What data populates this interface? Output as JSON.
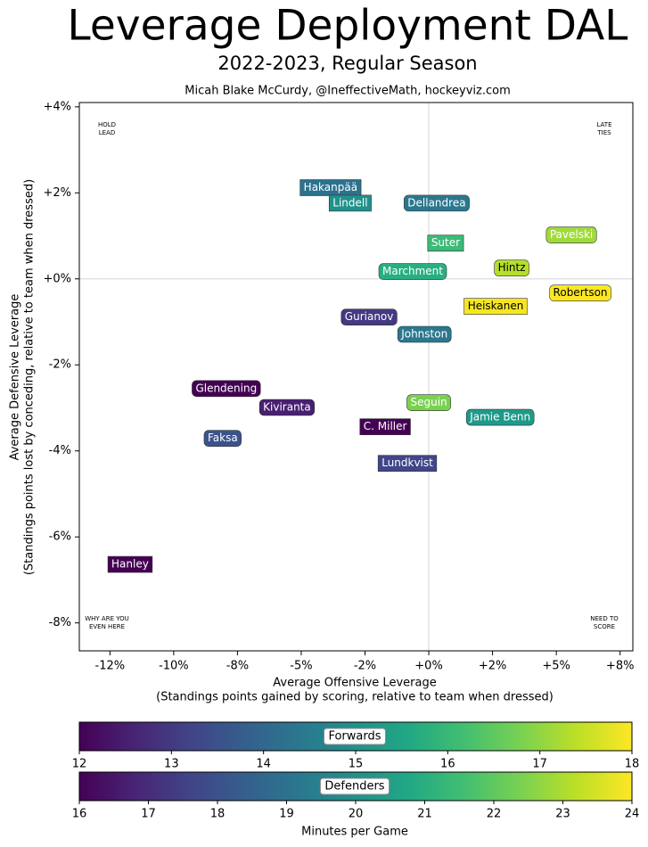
{
  "chart_data": {
    "type": "scatter",
    "title": "Leverage Deployment DAL",
    "subtitle": "2022-2023, Regular Season",
    "byline": "Micah Blake McCurdy, @IneffectiveMath, hockeyviz.com",
    "x_label": [
      "Average Offensive Leverage",
      "(Standings points gained by scoring, relative to team when dressed)"
    ],
    "y_label": [
      "Average Defensive Leverage",
      "(Standings points lost by conceding, relative to team when dressed)"
    ],
    "xlim": [
      -13.7,
      8.0
    ],
    "ylim": [
      -8.65,
      4.1
    ],
    "xticks": [
      {
        "value": -12.5,
        "label": "-12%"
      },
      {
        "value": -10,
        "label": "-10%"
      },
      {
        "value": -7.5,
        "label": "-8%"
      },
      {
        "value": -5,
        "label": "-5%"
      },
      {
        "value": -2.5,
        "label": "-2%"
      },
      {
        "value": 0,
        "label": "+0%"
      },
      {
        "value": 2.5,
        "label": "+2%"
      },
      {
        "value": 5,
        "label": "+5%"
      },
      {
        "value": 7.5,
        "label": "+8%"
      }
    ],
    "yticks": [
      {
        "value": 4,
        "label": "+4%"
      },
      {
        "value": 2,
        "label": "+2%"
      },
      {
        "value": 0,
        "label": "+0%"
      },
      {
        "value": -2,
        "label": "-2%"
      },
      {
        "value": -4,
        "label": "-4%"
      },
      {
        "value": -6,
        "label": "-6%"
      },
      {
        "value": -8,
        "label": "-8%"
      }
    ],
    "reference_lines": {
      "x": 0,
      "y": 0
    },
    "points": [
      {
        "label": "Hakanpää",
        "x": -3.85,
        "y": 2.12,
        "color": "#2c728e",
        "shape": "square"
      },
      {
        "label": "Lindell",
        "x": -3.08,
        "y": 1.76,
        "color": "#21918c",
        "shape": "square"
      },
      {
        "label": "Dellandrea",
        "x": 0.31,
        "y": 1.76,
        "color": "#2a788e",
        "shape": "round"
      },
      {
        "label": "Suter",
        "x": 0.66,
        "y": 0.83,
        "color": "#3bbb75",
        "shape": "square"
      },
      {
        "label": "Pavelski",
        "x": 5.59,
        "y": 1.02,
        "color": "#a0da39",
        "shape": "round"
      },
      {
        "label": "Hintz",
        "x": 3.25,
        "y": 0.25,
        "color": "#b5de2b",
        "shape": "round"
      },
      {
        "label": "Marchment",
        "x": -0.63,
        "y": 0.17,
        "color": "#29af7f",
        "shape": "round"
      },
      {
        "label": "Robertson",
        "x": 5.94,
        "y": -0.33,
        "color": "#fde725",
        "shape": "round"
      },
      {
        "label": "Heiskanen",
        "x": 2.62,
        "y": -0.64,
        "color": "#f6e620",
        "shape": "square"
      },
      {
        "label": "Gurianov",
        "x": -2.34,
        "y": -0.89,
        "color": "#443983",
        "shape": "round"
      },
      {
        "label": "Johnston",
        "x": -0.17,
        "y": -1.29,
        "color": "#2a788e",
        "shape": "round"
      },
      {
        "label": "Glendening",
        "x": -7.94,
        "y": -2.55,
        "color": "#440154",
        "shape": "round"
      },
      {
        "label": "Kiviranta",
        "x": -5.56,
        "y": -2.99,
        "color": "#481f70",
        "shape": "round"
      },
      {
        "label": "Seguin",
        "x": 0.0,
        "y": -2.88,
        "color": "#7ad151",
        "shape": "round"
      },
      {
        "label": "Jamie Benn",
        "x": 2.8,
        "y": -3.22,
        "color": "#1f9a8a",
        "shape": "round"
      },
      {
        "label": "C. Miller",
        "x": -1.71,
        "y": -3.44,
        "color": "#440154",
        "shape": "square"
      },
      {
        "label": "Faksa",
        "x": -8.08,
        "y": -3.71,
        "color": "#3b528b",
        "shape": "round"
      },
      {
        "label": "Lundkvist",
        "x": -0.84,
        "y": -4.29,
        "color": "#404688",
        "shape": "square"
      },
      {
        "label": "Hanley",
        "x": -11.71,
        "y": -6.64,
        "color": "#440154",
        "shape": "square"
      }
    ],
    "annotations": [
      {
        "lines": [
          "HOLD",
          "LEAD"
        ],
        "corner": "top-left"
      },
      {
        "lines": [
          "LATE",
          "TIES"
        ],
        "corner": "top-right"
      },
      {
        "lines": [
          "WHY ARE YOU",
          "EVEN HERE"
        ],
        "corner": "bottom-left"
      },
      {
        "lines": [
          "NEED TO",
          "SCORE"
        ],
        "corner": "bottom-right"
      }
    ],
    "colorbars": [
      {
        "label": "Forwards",
        "lim": [
          12,
          18
        ],
        "ticks": [
          12,
          13,
          14,
          15,
          16,
          17,
          18
        ]
      },
      {
        "label": "Defenders",
        "lim": [
          16,
          24
        ],
        "ticks": [
          16,
          17,
          18,
          19,
          20,
          21,
          22,
          23,
          24
        ]
      }
    ],
    "colorbar_label": "Minutes per Game"
  }
}
